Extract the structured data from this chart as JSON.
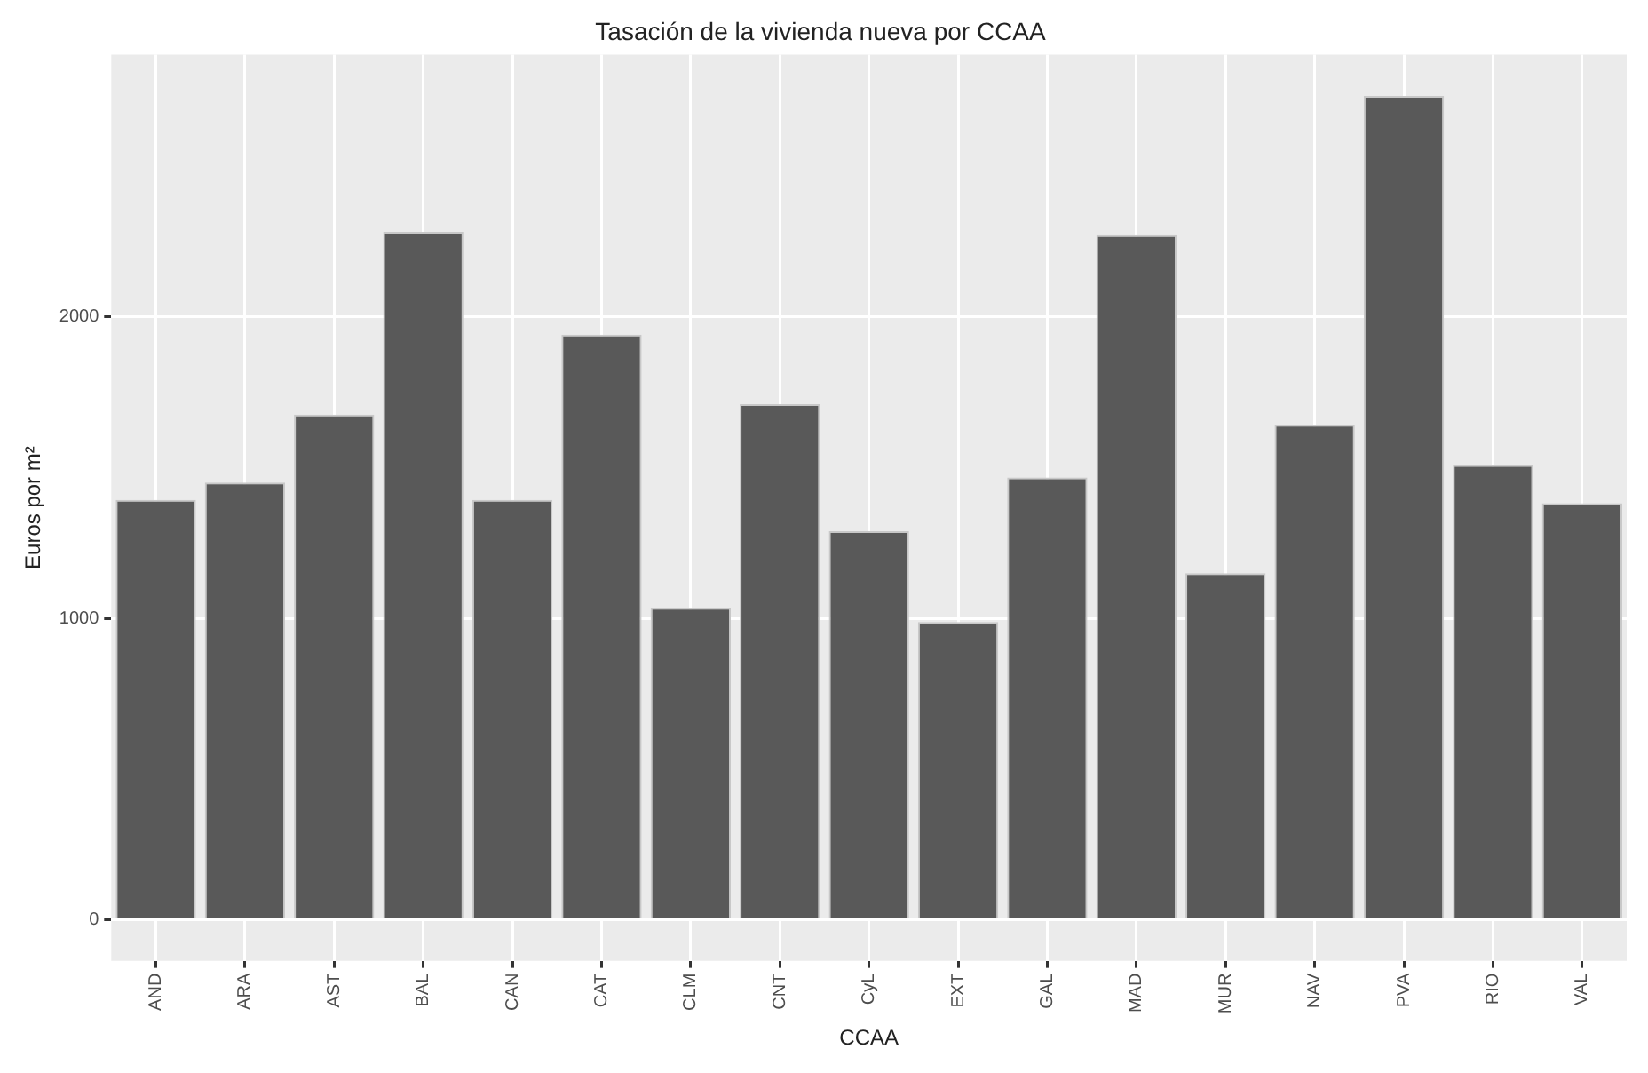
{
  "chart_data": {
    "type": "bar",
    "title": "Tasación de la vivienda nueva por CCAA",
    "xlabel": "CCAA",
    "ylabel": "Euros por m²",
    "categories": [
      "AND",
      "ARA",
      "AST",
      "BAL",
      "CAN",
      "CAT",
      "CLM",
      "CNT",
      "CyL",
      "EXT",
      "GAL",
      "MAD",
      "MUR",
      "NAV",
      "PVA",
      "RIO",
      "VAL"
    ],
    "values": [
      1393,
      1451,
      1676,
      2283,
      1393,
      1942,
      1035,
      1711,
      1289,
      988,
      1468,
      2272,
      1150,
      1642,
      2734,
      1509,
      1382
    ],
    "color": "#595959",
    "ylim": [
      -137,
      2871
    ],
    "yticks": [
      0,
      1000,
      2000
    ],
    "grid": true,
    "legend": false
  }
}
